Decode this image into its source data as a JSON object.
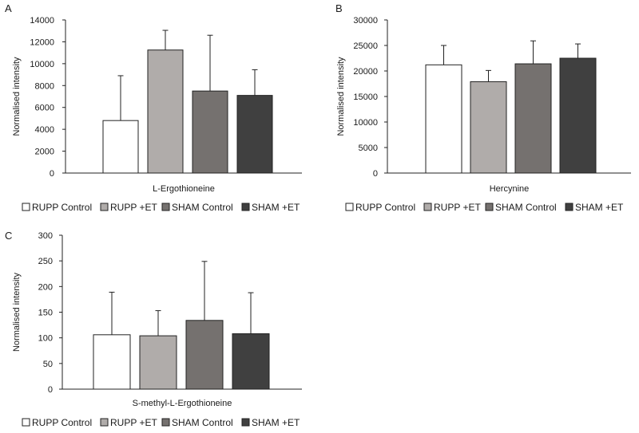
{
  "panel_labels": [
    "A",
    "B",
    "C"
  ],
  "legend_colors": [
    "#ffffff",
    "#b0acaa",
    "#75716f",
    "#404040"
  ],
  "chart_data": [
    {
      "type": "bar",
      "panel": "A",
      "title": "",
      "xlabel": "L-Ergothioneine",
      "ylabel": "Normalised intensity",
      "ylim": [
        0,
        14000
      ],
      "yticks": [
        0,
        2000,
        4000,
        6000,
        8000,
        10000,
        12000,
        14000
      ],
      "ytick_labels": [
        "0",
        "2000",
        "4000",
        "6000",
        "8000",
        "10000",
        "12000",
        "14000"
      ],
      "series": [
        {
          "name": "RUPP Control",
          "value": 4800,
          "error": 4100
        },
        {
          "name": "RUPP +ET",
          "value": 11250,
          "error": 1800
        },
        {
          "name": "SHAM Control",
          "value": 7500,
          "error": 5100
        },
        {
          "name": "SHAM +ET",
          "value": 7100,
          "error": 2350
        }
      ],
      "legend": [
        "RUPP Control",
        "RUPP +ET",
        "SHAM Control",
        "SHAM +ET"
      ]
    },
    {
      "type": "bar",
      "panel": "B",
      "title": "",
      "xlabel": "Hercynine",
      "ylabel": "Normalised intensity",
      "ylim": [
        0,
        30000
      ],
      "yticks": [
        0,
        5000,
        10000,
        15000,
        20000,
        25000,
        30000
      ],
      "ytick_labels": [
        "0",
        "5000",
        "10000",
        "15000",
        "20000",
        "25000",
        "30000"
      ],
      "series": [
        {
          "name": "RUPP Control",
          "value": 21200,
          "error": 3800
        },
        {
          "name": "RUPP +ET",
          "value": 17900,
          "error": 2200
        },
        {
          "name": "SHAM Control",
          "value": 21400,
          "error": 4500
        },
        {
          "name": "SHAM +ET",
          "value": 22500,
          "error": 2800
        }
      ],
      "legend": [
        "RUPP Control",
        "RUPP +ET",
        "SHAM Control",
        "SHAM +ET"
      ]
    },
    {
      "type": "bar",
      "panel": "C",
      "title": "",
      "xlabel": "S-methyl-L-Ergothioneine",
      "ylabel": "Normalised intensity",
      "ylim": [
        0,
        300
      ],
      "yticks": [
        0,
        50,
        100,
        150,
        200,
        250,
        300
      ],
      "ytick_labels": [
        "0",
        "50",
        "100",
        "150",
        "200",
        "250",
        "300"
      ],
      "series": [
        {
          "name": "RUPP Control",
          "value": 106,
          "error": 83
        },
        {
          "name": "RUPP +ET",
          "value": 104,
          "error": 49
        },
        {
          "name": "SHAM Control",
          "value": 134,
          "error": 115
        },
        {
          "name": "SHAM +ET",
          "value": 108,
          "error": 80
        }
      ],
      "legend": [
        "RUPP Control",
        "RUPP +ET",
        "SHAM Control",
        "SHAM +ET"
      ]
    }
  ]
}
